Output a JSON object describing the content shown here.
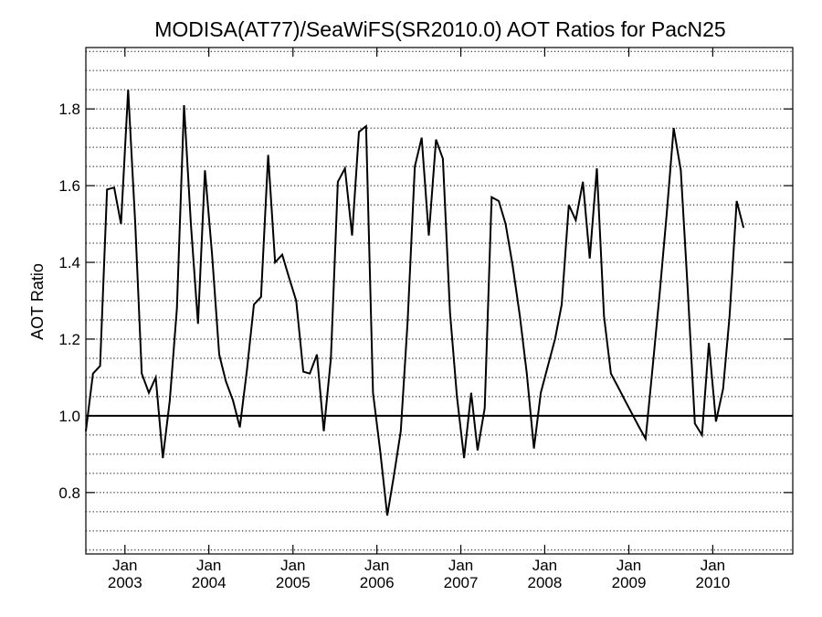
{
  "chart_data": {
    "type": "line",
    "title": "MODISA(AT77)/SeaWiFS(SR2010.0)  AOT Ratios for PacN25",
    "xlabel": "",
    "ylabel": "AOT Ratio",
    "xlim": [
      "2002-07-15",
      "2010-12-15"
    ],
    "ylim": [
      0.64,
      1.96
    ],
    "yticks": [
      0.8,
      1.0,
      1.2,
      1.4,
      1.6,
      1.8
    ],
    "ytick_labels": [
      "0.8",
      "1.0",
      "1.2",
      "1.4",
      "1.6",
      "1.8"
    ],
    "xticks": [
      {
        "date": "2003-01-01",
        "month": "Jan",
        "year": "2003"
      },
      {
        "date": "2004-01-01",
        "month": "Jan",
        "year": "2004"
      },
      {
        "date": "2005-01-01",
        "month": "Jan",
        "year": "2005"
      },
      {
        "date": "2006-01-01",
        "month": "Jan",
        "year": "2006"
      },
      {
        "date": "2007-01-01",
        "month": "Jan",
        "year": "2007"
      },
      {
        "date": "2008-01-01",
        "month": "Jan",
        "year": "2008"
      },
      {
        "date": "2009-01-01",
        "month": "Jan",
        "year": "2009"
      },
      {
        "date": "2010-01-01",
        "month": "Jan",
        "year": "2010"
      }
    ],
    "grid": {
      "horizontal": "dotted",
      "step": 0.05
    },
    "reference_line": 1.0,
    "series": [
      {
        "name": "",
        "points": [
          [
            "2002-07-15",
            0.96
          ],
          [
            "2002-08-15",
            1.11
          ],
          [
            "2002-09-15",
            1.13
          ],
          [
            "2002-10-15",
            1.59
          ],
          [
            "2002-11-15",
            1.595
          ],
          [
            "2002-12-15",
            1.5
          ],
          [
            "2003-01-15",
            1.85
          ],
          [
            "2003-02-15",
            1.5
          ],
          [
            "2003-03-15",
            1.11
          ],
          [
            "2003-04-15",
            1.06
          ],
          [
            "2003-05-15",
            1.1
          ],
          [
            "2003-06-15",
            0.89
          ],
          [
            "2003-07-15",
            1.04
          ],
          [
            "2003-08-15",
            1.28
          ],
          [
            "2003-09-15",
            1.81
          ],
          [
            "2003-10-15",
            1.5
          ],
          [
            "2003-11-15",
            1.24
          ],
          [
            "2003-12-15",
            1.64
          ],
          [
            "2004-01-15",
            1.42
          ],
          [
            "2004-02-15",
            1.16
          ],
          [
            "2004-03-15",
            1.09
          ],
          [
            "2004-04-15",
            1.04
          ],
          [
            "2004-05-15",
            0.97
          ],
          [
            "2004-06-15",
            1.12
          ],
          [
            "2004-07-15",
            1.29
          ],
          [
            "2004-08-15",
            1.31
          ],
          [
            "2004-09-15",
            1.68
          ],
          [
            "2004-10-15",
            1.4
          ],
          [
            "2004-11-15",
            1.42
          ],
          [
            "2004-12-15",
            1.36
          ],
          [
            "2005-01-15",
            1.3
          ],
          [
            "2005-02-15",
            1.115
          ],
          [
            "2005-03-15",
            1.11
          ],
          [
            "2005-04-15",
            1.16
          ],
          [
            "2005-05-15",
            0.96
          ],
          [
            "2005-06-15",
            1.15
          ],
          [
            "2005-07-15",
            1.61
          ],
          [
            "2005-08-15",
            1.645
          ],
          [
            "2005-09-15",
            1.47
          ],
          [
            "2005-10-15",
            1.74
          ],
          [
            "2005-11-15",
            1.755
          ],
          [
            "2005-12-15",
            1.06
          ],
          [
            "2006-01-15",
            0.91
          ],
          [
            "2006-02-15",
            0.74
          ],
          [
            "2006-03-15",
            0.84
          ],
          [
            "2006-04-15",
            0.96
          ],
          [
            "2006-05-15",
            1.25
          ],
          [
            "2006-06-15",
            1.65
          ],
          [
            "2006-07-15",
            1.725
          ],
          [
            "2006-08-15",
            1.47
          ],
          [
            "2006-09-15",
            1.72
          ],
          [
            "2006-10-15",
            1.67
          ],
          [
            "2006-11-15",
            1.27
          ],
          [
            "2006-12-15",
            1.05
          ],
          [
            "2007-01-15",
            0.89
          ],
          [
            "2007-02-15",
            1.06
          ],
          [
            "2007-03-15",
            0.91
          ],
          [
            "2007-04-15",
            1.02
          ],
          [
            "2007-05-15",
            1.57
          ],
          [
            "2007-06-15",
            1.56
          ],
          [
            "2007-07-15",
            1.5
          ],
          [
            "2007-08-15",
            1.39
          ],
          [
            "2007-09-15",
            1.26
          ],
          [
            "2007-10-15",
            1.11
          ],
          [
            "2007-11-15",
            0.915
          ],
          [
            "2007-12-15",
            1.06
          ],
          [
            "2008-01-15",
            1.13
          ],
          [
            "2008-02-15",
            1.2
          ],
          [
            "2008-03-15",
            1.29
          ],
          [
            "2008-04-15",
            1.55
          ],
          [
            "2008-05-15",
            1.51
          ],
          [
            "2008-06-15",
            1.61
          ],
          [
            "2008-07-15",
            1.41
          ],
          [
            "2008-08-15",
            1.645
          ],
          [
            "2008-09-15",
            1.26
          ],
          [
            "2008-10-15",
            1.11
          ],
          [
            "2008-11-15",
            1.075
          ],
          [
            "2008-12-15",
            1.04
          ],
          [
            "2009-01-15",
            1.005
          ],
          [
            "2009-02-15",
            0.97
          ],
          [
            "2009-03-15",
            0.94
          ],
          [
            "2009-04-15",
            1.13
          ],
          [
            "2009-05-15",
            1.32
          ],
          [
            "2009-06-15",
            1.53
          ],
          [
            "2009-07-15",
            1.75
          ],
          [
            "2009-08-15",
            1.64
          ],
          [
            "2009-09-15",
            1.32
          ],
          [
            "2009-10-15",
            0.98
          ],
          [
            "2009-11-15",
            0.95
          ],
          [
            "2009-12-15",
            1.19
          ],
          [
            "2010-01-15",
            0.985
          ],
          [
            "2010-02-15",
            1.07
          ],
          [
            "2010-03-15",
            1.26
          ],
          [
            "2010-04-15",
            1.56
          ],
          [
            "2010-05-15",
            1.49
          ]
        ]
      }
    ]
  }
}
